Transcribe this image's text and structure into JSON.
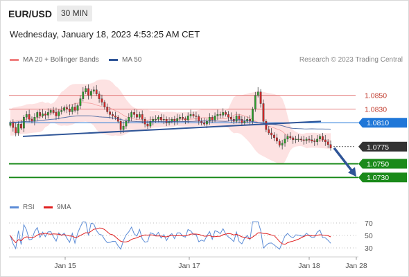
{
  "header": {
    "symbol": "EUR/USD",
    "timeframe": "30 MIN",
    "datetime": "Wednesday, January 18, 2023 4:53:25 AM CET"
  },
  "legend": {
    "ma20_label": "MA 20 + Bollinger Bands",
    "ma50_label": "MA 50",
    "research": "Research © 2023 Trading Central",
    "rsi_label": "RSI",
    "rsi_ma_label": "9MA"
  },
  "colors": {
    "bollinger": "#f08080",
    "bollinger_fill": "#fde2e2",
    "ma50": "#2f5597",
    "candle_up": "#2ca02c",
    "candle_down": "#d62728",
    "resistance": "#e06666",
    "support": "#1a8a1a",
    "current_price": "#333333",
    "current_blue": "#1f77d8",
    "rsi": "#5b8bd6",
    "rsi_ma": "#e02020",
    "arrow": "#2f5597"
  },
  "chart_data": [
    {
      "type": "candlestick",
      "title": "",
      "x_ticks": [
        "Jan 15",
        "Jan 17",
        "Jan 18",
        "Jan 28"
      ],
      "y_range": [
        1.0715,
        1.0875
      ],
      "levels": [
        {
          "value": 1.085,
          "label": "1.0850",
          "kind": "resistance"
        },
        {
          "value": 1.083,
          "label": "1.0830",
          "kind": "resistance"
        },
        {
          "value": 1.081,
          "label": "1.0810",
          "kind": "current-blue"
        },
        {
          "value": 1.0775,
          "label": "1.0775",
          "kind": "current"
        },
        {
          "value": 1.075,
          "label": "1.0750",
          "kind": "support"
        },
        {
          "value": 1.073,
          "label": "1.0730",
          "kind": "support"
        }
      ],
      "trendline": {
        "start": 1.079,
        "end": 1.0812
      },
      "ma50_level": 1.081,
      "forecast_arrow": {
        "from": 1.0773,
        "to": 1.0733
      },
      "ohlc_seed": [
        1.081,
        1.0803,
        1.0795,
        1.0808,
        1.0802,
        1.0818,
        1.0822,
        1.0815,
        1.0812,
        1.0818,
        1.0825,
        1.082,
        1.0823,
        1.0821,
        1.0825,
        1.0828,
        1.0825,
        1.082,
        1.0826,
        1.0828,
        1.0832,
        1.083,
        1.0826,
        1.0833,
        1.0828,
        1.0835,
        1.0845,
        1.0855,
        1.086,
        1.085,
        1.0856,
        1.0858,
        1.0852,
        1.0845,
        1.084,
        1.0833,
        1.0826,
        1.0822,
        1.082,
        1.0818,
        1.0812,
        1.08,
        1.0805,
        1.0812,
        1.0818,
        1.0825,
        1.0822,
        1.0818,
        1.0822,
        1.0815,
        1.0808,
        1.0805,
        1.0812,
        1.0815,
        1.0815,
        1.0818,
        1.0814,
        1.0815,
        1.081,
        1.0812,
        1.0815,
        1.0812,
        1.0816,
        1.0818,
        1.0816,
        1.0814,
        1.082,
        1.0822,
        1.082,
        1.0819,
        1.0812,
        1.081,
        1.0808,
        1.0812,
        1.0818,
        1.0814,
        1.082,
        1.0822,
        1.0821,
        1.0825,
        1.0822,
        1.0818,
        1.0815,
        1.0812,
        1.082,
        1.0815,
        1.081,
        1.0812,
        1.0815,
        1.0812,
        1.083,
        1.085,
        1.0855,
        1.0838,
        1.0812,
        1.08,
        1.0795,
        1.0792,
        1.0788,
        1.0783,
        1.0777,
        1.078,
        1.0786,
        1.079,
        1.0788,
        1.0785,
        1.0786,
        1.0786,
        1.0785,
        1.0784,
        1.0786,
        1.0785,
        1.0783,
        1.0782,
        1.0786,
        1.079,
        1.0785,
        1.0782,
        1.0778,
        1.0773
      ]
    },
    {
      "type": "line",
      "title": "",
      "series": [
        {
          "name": "RSI"
        },
        {
          "name": "9MA"
        }
      ],
      "y_ticks": [
        70,
        50,
        30
      ],
      "y_range": [
        20,
        80
      ]
    }
  ]
}
